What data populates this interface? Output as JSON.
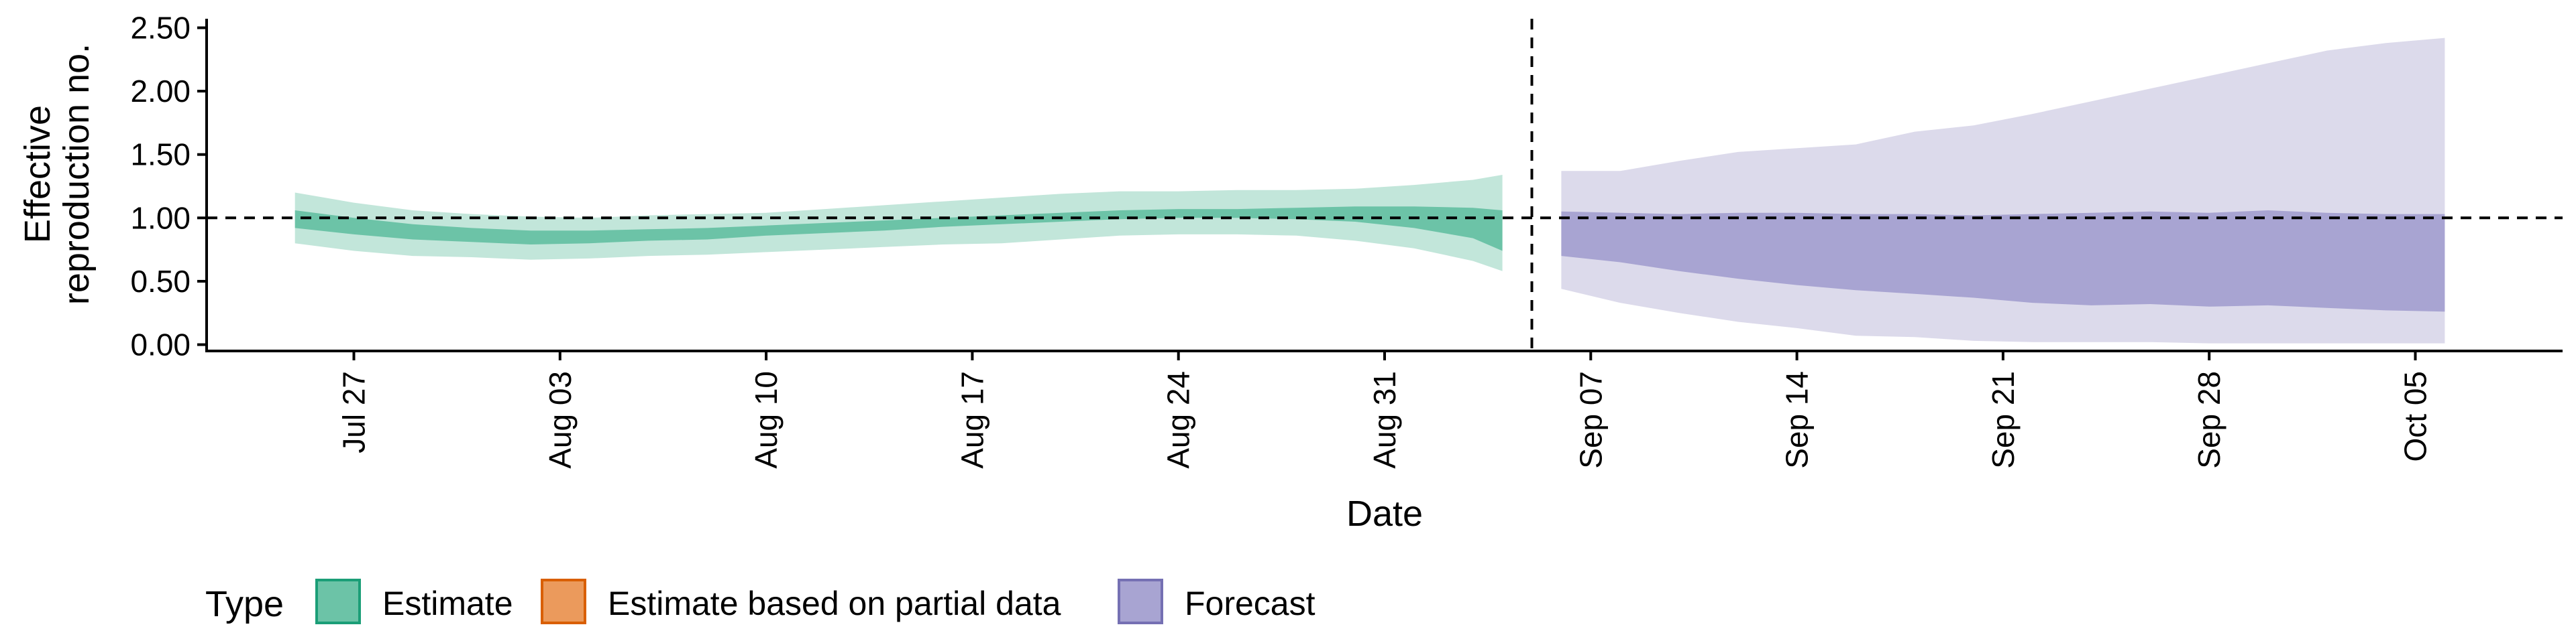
{
  "chart_data": {
    "type": "area",
    "xlabel": "Date",
    "ylabel_lines": [
      "Effective",
      "reproduction no."
    ],
    "ylim": [
      -0.05,
      2.55
    ],
    "yticks": [
      0,
      0.5,
      1,
      1.5,
      2,
      2.5
    ],
    "ytick_labels": [
      "0.00",
      "0.50",
      "1.00",
      "1.50",
      "2.00",
      "2.50"
    ],
    "xlim": [
      "2020-07-22",
      "2020-10-10"
    ],
    "xticks": [
      "2020-07-27",
      "2020-08-03",
      "2020-08-10",
      "2020-08-17",
      "2020-08-24",
      "2020-08-31",
      "2020-09-07",
      "2020-09-14",
      "2020-09-21",
      "2020-09-28",
      "2020-10-05"
    ],
    "xtick_labels": [
      "Jul 27",
      "Aug 03",
      "Aug 10",
      "Aug 17",
      "Aug 24",
      "Aug 31",
      "Sep 07",
      "Sep 14",
      "Sep 21",
      "Sep 28",
      "Oct 05"
    ],
    "reference_hline": 1.0,
    "reference_vline": "2020-09-05",
    "legend": {
      "title": "Type",
      "position": "bottom",
      "items": [
        {
          "label": "Estimate",
          "fill": "#6cc3a7",
          "stroke": "#1b9e77"
        },
        {
          "label": "Estimate based on partial data",
          "fill": "#eb9a5c",
          "stroke": "#d95f02"
        },
        {
          "label": "Forecast",
          "fill": "#a8a4d2",
          "stroke": "#7570b3"
        }
      ]
    },
    "series": [
      {
        "name": "Estimate",
        "dates": [
          "2020-07-25",
          "2020-07-27",
          "2020-07-29",
          "2020-07-31",
          "2020-08-02",
          "2020-08-04",
          "2020-08-06",
          "2020-08-08",
          "2020-08-10",
          "2020-08-12",
          "2020-08-14",
          "2020-08-16",
          "2020-08-18",
          "2020-08-20",
          "2020-08-22",
          "2020-08-24",
          "2020-08-26",
          "2020-08-28",
          "2020-08-30",
          "2020-09-01",
          "2020-09-03",
          "2020-09-04"
        ],
        "outer_lower": [
          0.8,
          0.74,
          0.7,
          0.69,
          0.67,
          0.68,
          0.7,
          0.71,
          0.73,
          0.75,
          0.77,
          0.79,
          0.8,
          0.83,
          0.86,
          0.87,
          0.87,
          0.86,
          0.82,
          0.76,
          0.66,
          0.58
        ],
        "outer_upper": [
          1.2,
          1.12,
          1.06,
          1.03,
          1.01,
          1.0,
          1.02,
          1.03,
          1.04,
          1.07,
          1.1,
          1.13,
          1.16,
          1.19,
          1.21,
          1.21,
          1.22,
          1.22,
          1.23,
          1.26,
          1.3,
          1.34
        ],
        "inner_lower": [
          0.92,
          0.87,
          0.83,
          0.81,
          0.79,
          0.8,
          0.82,
          0.83,
          0.86,
          0.88,
          0.9,
          0.93,
          0.95,
          0.97,
          0.99,
          1.0,
          1.0,
          0.99,
          0.97,
          0.92,
          0.84,
          0.74
        ],
        "inner_upper": [
          1.06,
          1.0,
          0.95,
          0.92,
          0.9,
          0.9,
          0.91,
          0.92,
          0.94,
          0.96,
          0.98,
          1.0,
          1.02,
          1.04,
          1.06,
          1.07,
          1.07,
          1.08,
          1.09,
          1.09,
          1.08,
          1.06
        ]
      },
      {
        "name": "Forecast",
        "dates": [
          "2020-09-06",
          "2020-09-08",
          "2020-09-10",
          "2020-09-12",
          "2020-09-14",
          "2020-09-16",
          "2020-09-18",
          "2020-09-20",
          "2020-09-22",
          "2020-09-24",
          "2020-09-26",
          "2020-09-28",
          "2020-09-30",
          "2020-10-02",
          "2020-10-04",
          "2020-10-06"
        ],
        "outer_lower": [
          0.44,
          0.33,
          0.25,
          0.18,
          0.13,
          0.07,
          0.06,
          0.03,
          0.02,
          0.02,
          0.02,
          0.01,
          0.01,
          0.01,
          0.01,
          0.01
        ],
        "outer_upper": [
          1.37,
          1.37,
          1.45,
          1.52,
          1.55,
          1.58,
          1.68,
          1.73,
          1.82,
          1.92,
          2.02,
          2.12,
          2.22,
          2.32,
          2.38,
          2.42
        ],
        "inner_lower": [
          0.7,
          0.65,
          0.58,
          0.52,
          0.47,
          0.43,
          0.4,
          0.37,
          0.33,
          0.31,
          0.32,
          0.3,
          0.31,
          0.29,
          0.27,
          0.26
        ],
        "inner_upper": [
          1.05,
          1.04,
          1.03,
          1.04,
          1.04,
          1.03,
          1.03,
          1.02,
          1.03,
          1.04,
          1.05,
          1.04,
          1.06,
          1.04,
          1.03,
          1.03
        ]
      }
    ],
    "colors": {
      "estimate_outer": "#c2e6da",
      "estimate_inner": "#6cc3a7",
      "forecast_outer": "#dcdaeb",
      "forecast_inner": "#a8a4d2"
    }
  }
}
